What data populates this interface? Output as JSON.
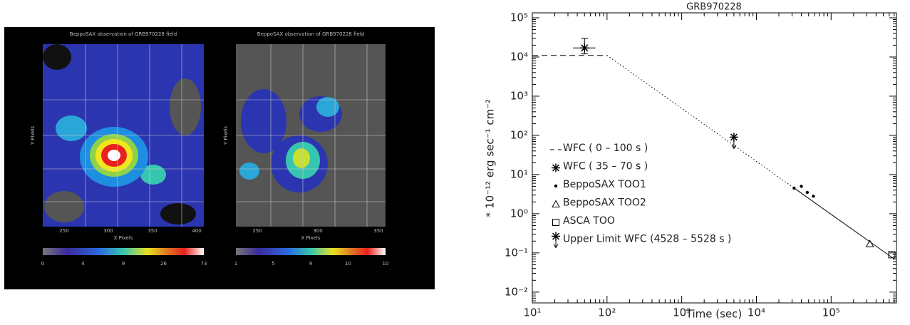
{
  "image": {
    "panels": [
      {
        "title": "BeppoSAX observation of GRB970228 field",
        "x_label": "X Pixels",
        "y_label": "Y Pixels",
        "x_ticks": [
          "250",
          "300",
          "350",
          "400"
        ],
        "colorbar_ticks": [
          "0",
          "4",
          "9",
          "26",
          "73"
        ]
      },
      {
        "title": "BeppoSAX observation of GRB970228 field",
        "x_label": "X Pixels",
        "y_label": "Y Pixels",
        "x_ticks": [
          "250",
          "300",
          "350"
        ],
        "colorbar_ticks": [
          "1",
          "5",
          "9",
          "10",
          "10"
        ]
      }
    ]
  },
  "chart_data": {
    "type": "line",
    "title": "GRB970228",
    "xlabel": "Time (sec)",
    "ylabel": "* 10⁻¹² erg sec⁻¹ cm⁻²",
    "xlog": true,
    "ylog": true,
    "grid": false,
    "legend": "left",
    "xlim": [
      10,
      750000
    ],
    "ylim": [
      0.0053,
      134000
    ],
    "xticks": [
      {
        "value": 10,
        "label": "10¹"
      },
      {
        "value": 100,
        "label": "10²"
      },
      {
        "value": 1000,
        "label": "10³"
      },
      {
        "value": 10000,
        "label": "10⁴"
      },
      {
        "value": 100000,
        "label": "10⁵"
      }
    ],
    "yticks": [
      {
        "value": 0.01,
        "label": "10⁻²"
      },
      {
        "value": 0.1,
        "label": "10⁻¹"
      },
      {
        "value": 1,
        "label": "10⁰"
      },
      {
        "value": 10,
        "label": "10¹"
      },
      {
        "value": 100,
        "label": "10²"
      },
      {
        "value": 1000,
        "label": "10³"
      },
      {
        "value": 10000,
        "label": "10⁴"
      },
      {
        "value": 100000,
        "label": "10⁵"
      }
    ],
    "series": [
      {
        "name": "WFC ( 0 – 100 s )",
        "marker": "dashed",
        "color": "#000000",
        "x": [
          10,
          100
        ],
        "values": [
          11000,
          11000
        ]
      },
      {
        "name": "WFC ( 35 – 70 s )",
        "marker": "asterisk",
        "color": "#000000",
        "x": [
          50
        ],
        "values": [
          17000
        ],
        "x_err": [
          [
            35,
            70
          ]
        ],
        "y_err": [
          [
            12000,
            30000
          ]
        ]
      },
      {
        "name": "BeppoSAX TOO1",
        "marker": "dot",
        "color": "#000000",
        "x": [
          32000,
          40000,
          48000,
          58000
        ],
        "values": [
          4.5,
          5,
          3.5,
          2.8
        ]
      },
      {
        "name": "BeppoSAX TOO2",
        "marker": "triangle",
        "color": "#000000",
        "x": [
          330000
        ],
        "values": [
          0.17
        ]
      },
      {
        "name": "ASCA TOO",
        "marker": "square",
        "color": "#000000",
        "x": [
          650000
        ],
        "values": [
          0.09
        ]
      },
      {
        "name": "Upper Limit WFC (4528 – 5528 s )",
        "marker": "upper-limit",
        "color": "#000000",
        "x": [
          5000
        ],
        "values": [
          90
        ]
      }
    ],
    "lines": [
      {
        "style": "dotted",
        "color": "#000000",
        "x": [
          100,
          32000
        ],
        "values": [
          11000,
          4.5
        ]
      },
      {
        "style": "solid",
        "color": "#000000",
        "x": [
          32000,
          700000
        ],
        "values": [
          4.5,
          0.07
        ]
      }
    ]
  }
}
